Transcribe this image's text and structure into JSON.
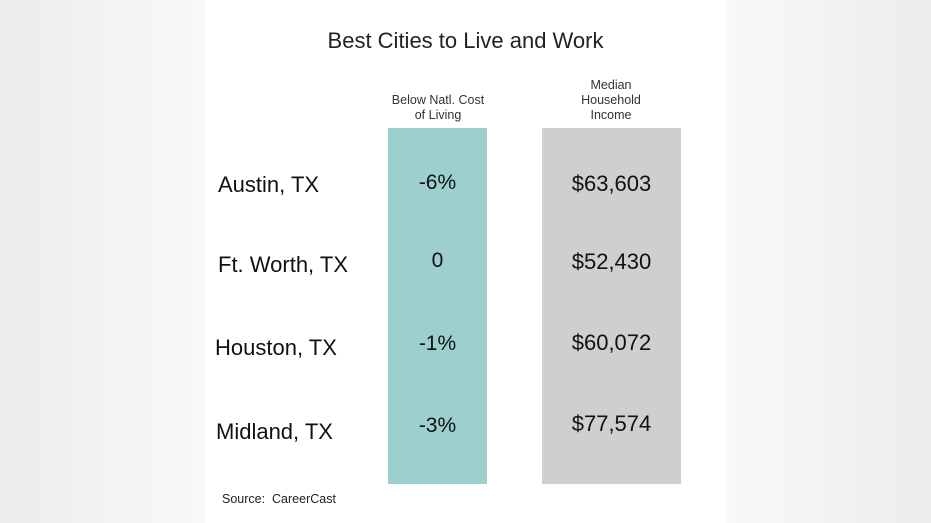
{
  "chart_data": {
    "type": "table",
    "title": "Best Cities to Live and Work",
    "columns": [
      "Below Natl. Cost of Living",
      "Median Household Income"
    ],
    "column_headers": {
      "cost": [
        "Below Natl. Cost",
        "of Living"
      ],
      "income": [
        "Median",
        "Household",
        "Income"
      ]
    },
    "rows": [
      {
        "city": "Austin, TX",
        "cost": "-6%",
        "income": "$63,603"
      },
      {
        "city": "Ft. Worth, TX",
        "cost": "0",
        "income": "$52,430"
      },
      {
        "city": "Houston, TX",
        "cost": "-1%",
        "income": "$60,072"
      },
      {
        "city": "Midland, TX",
        "cost": "-3%",
        "income": "$77,574"
      }
    ],
    "cost_values_percent": [
      -6,
      0,
      -1,
      -3
    ],
    "income_values_usd": [
      63603,
      52430,
      60072,
      77574
    ],
    "source": "Source:  CareerCast",
    "colors": {
      "cost_column": "#9ecfcf",
      "income_column": "#cfcfcf",
      "background": "#ffffff"
    }
  }
}
